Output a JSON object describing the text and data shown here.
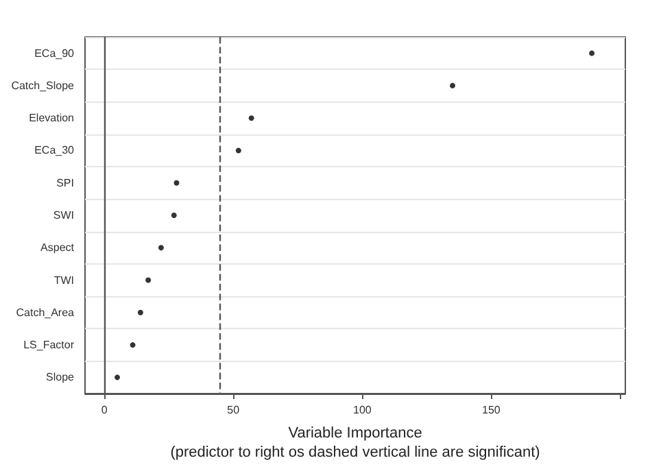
{
  "chart_data": {
    "type": "scatter",
    "orientation": "horizontal",
    "categories": [
      "ECa_90",
      "Catch_Slope",
      "Elevation",
      "ECa_30",
      "SPI",
      "SWI",
      "Aspect",
      "TWI",
      "Catch_Area",
      "LS_Factor",
      "Slope"
    ],
    "series": [
      {
        "color": "#000000",
        "values": [
          189,
          135,
          57,
          52,
          28,
          27,
          22,
          17,
          14,
          11,
          5
        ]
      }
    ],
    "xlim": [
      -7.5,
      202
    ],
    "xticks": [
      0,
      50,
      100,
      150,
      {
        "value": 200,
        "label": null
      }
    ],
    "xlabel": "Variable Importance\n(predictor to right os dashed vertical line are significant)",
    "ref_lines": [
      {
        "axis": "x",
        "value": 0,
        "color": "#555555",
        "line_style": "solid"
      },
      {
        "axis": "x",
        "value": 45,
        "color": "#555555",
        "line_style": "dashed"
      }
    ],
    "grid": "y",
    "marker": "circle"
  }
}
